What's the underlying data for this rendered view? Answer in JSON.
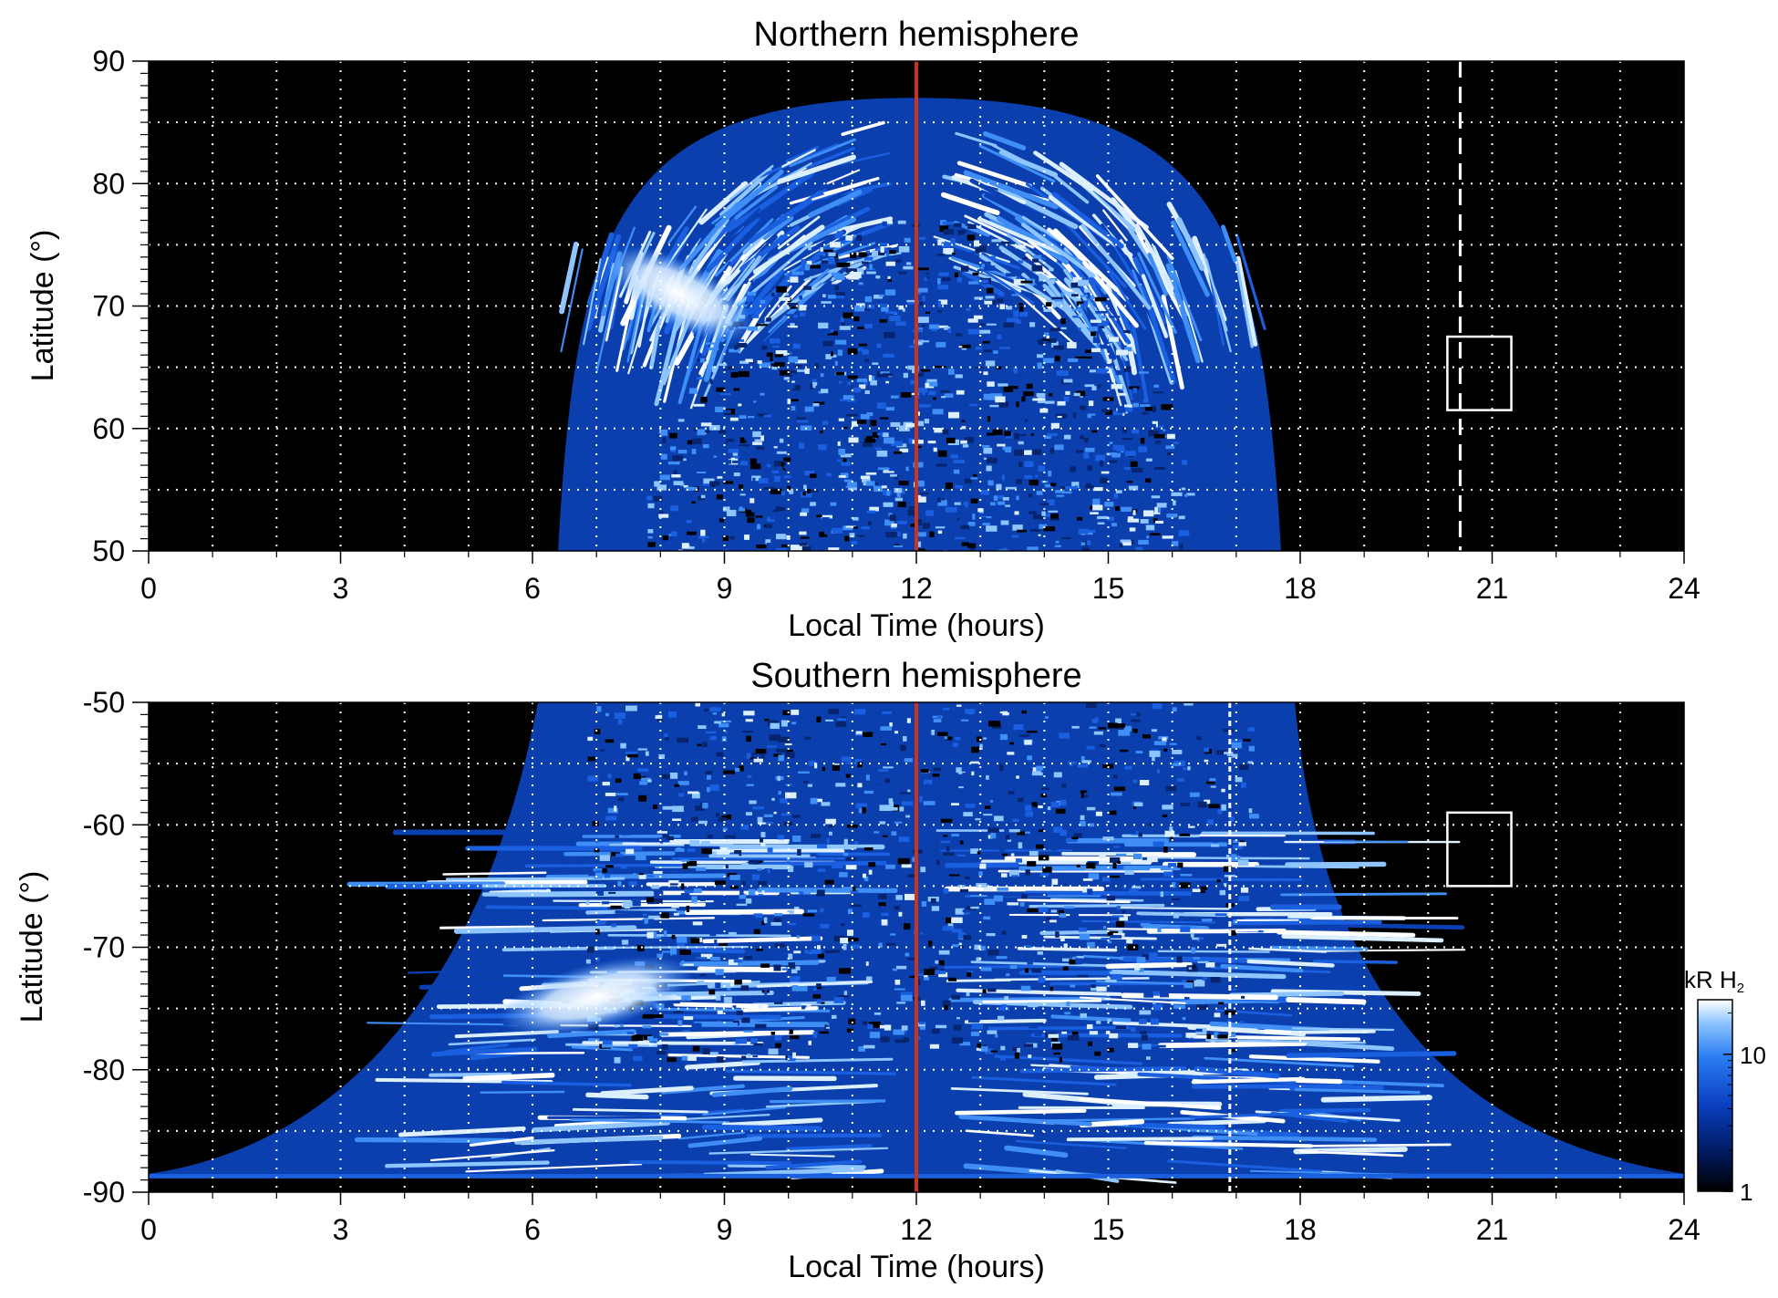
{
  "chart_data": [
    {
      "type": "heatmap",
      "title": "Northern hemisphere",
      "xlabel": "Local Time (hours)",
      "ylabel": "Latitude (°)",
      "xlim": [
        0,
        24
      ],
      "ylim": [
        50,
        90
      ],
      "xticks": [
        "0",
        "3",
        "6",
        "9",
        "12",
        "15",
        "18",
        "21",
        "24"
      ],
      "yticks": [
        "50",
        "60",
        "70",
        "80",
        "90"
      ],
      "grid": true,
      "colormap": "black-blue-white",
      "emission_extent": {
        "lt_start": 6.4,
        "lt_end": 17.7,
        "lat_peak": 87
      },
      "bright_feature": {
        "lt_center": 8.3,
        "lat_center": 71,
        "description": "bright patch"
      },
      "noon_line_lt": 12,
      "noon_line_color": "#c8341c",
      "dashed_line_lt": 20.5,
      "box": {
        "lt": [
          20.3,
          21.3
        ],
        "lat": [
          61.5,
          67.5
        ]
      }
    },
    {
      "type": "heatmap",
      "title": "Southern hemisphere",
      "xlabel": "Local Time (hours)",
      "ylabel": "Latitude (°)",
      "xlim": [
        0,
        24
      ],
      "ylim": [
        -90,
        -50
      ],
      "xticks": [
        "0",
        "3",
        "6",
        "9",
        "12",
        "15",
        "18",
        "21",
        "24"
      ],
      "yticks": [
        "-50",
        "-60",
        "-70",
        "-80",
        "-90"
      ],
      "grid": true,
      "colormap": "black-blue-white",
      "emission_extent": {
        "lt_start": 5.8,
        "lt_end": 18.2,
        "lat_edge": -88.5
      },
      "bright_feature": {
        "lt_center": 7.0,
        "lat_center": -74,
        "description": "bright patch"
      },
      "noon_line_lt": 12,
      "noon_line_color": "#c8341c",
      "dashed_line_lt": 16.9,
      "box": {
        "lt": [
          20.3,
          21.3
        ],
        "lat": [
          -65,
          -59
        ]
      }
    }
  ],
  "colorbar": {
    "label_units": "kR H",
    "label_subscript": "2",
    "ticks": [
      "1",
      "10"
    ],
    "scale": "log",
    "range": [
      1,
      25
    ],
    "colors": [
      "#000000",
      "#001a5e",
      "#0a3fbf",
      "#2a7cf2",
      "#8ec5ff",
      "#ffffff"
    ]
  }
}
